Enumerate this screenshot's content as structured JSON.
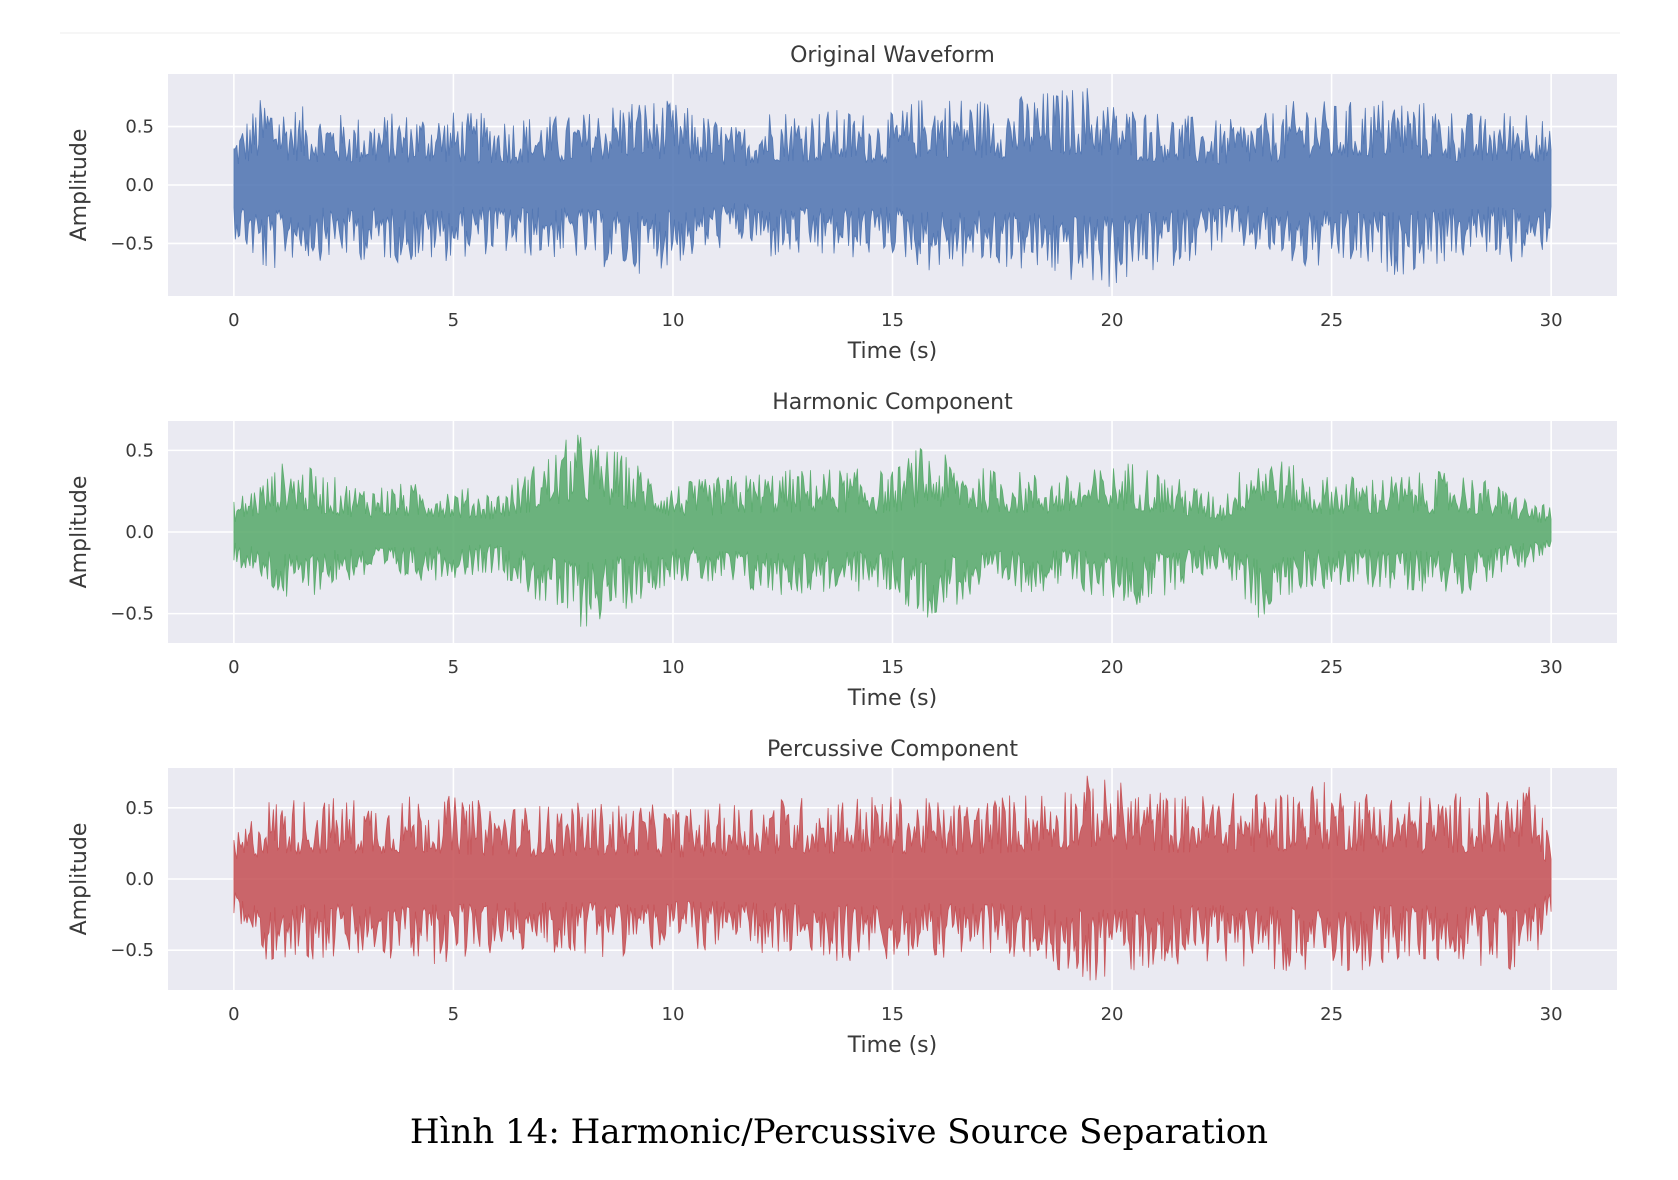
{
  "figure": {
    "caption": "Hình 14: Harmonic/Percussive Source Separation"
  },
  "chart_data": [
    {
      "type": "area",
      "title": "Original Waveform",
      "xlabel": "Time (s)",
      "ylabel": "Amplitude",
      "xlim": [
        -1.5,
        31.5
      ],
      "ylim": [
        -0.95,
        0.95
      ],
      "xticks": [
        0,
        5,
        10,
        15,
        20,
        25,
        30
      ],
      "yticks": [
        0.5,
        0.0,
        -0.5
      ],
      "xtick_labels": [
        "0",
        "5",
        "10",
        "15",
        "20",
        "25",
        "30"
      ],
      "ytick_labels": [
        "0.5",
        "0.0",
        "−0.5"
      ],
      "grid": true,
      "color": "#4c72b0",
      "series": [
        {
          "x": [
            0,
            0.75,
            1.2,
            2.7,
            4.5,
            5.6,
            7.8,
            9.0,
            10.0,
            11.5,
            12.2,
            14.0,
            15.0,
            15.8,
            17.5,
            19.5,
            20.0,
            22.5,
            23.5,
            24.5,
            25.0,
            26.5,
            28.5,
            29.6,
            30.0
          ],
          "values": [
            0.45,
            0.82,
            0.7,
            0.6,
            0.65,
            0.62,
            0.6,
            0.78,
            0.72,
            0.5,
            0.68,
            0.65,
            0.62,
            0.8,
            0.75,
            0.88,
            0.72,
            0.55,
            0.62,
            0.78,
            0.7,
            0.78,
            0.6,
            0.72,
            0.45
          ],
          "min_values": [
            -0.45,
            -0.82,
            -0.65,
            -0.65,
            -0.68,
            -0.6,
            -0.65,
            -0.78,
            -0.7,
            -0.5,
            -0.65,
            -0.65,
            -0.6,
            -0.75,
            -0.72,
            -0.88,
            -0.9,
            -0.55,
            -0.62,
            -0.78,
            -0.7,
            -0.78,
            -0.6,
            -0.72,
            -0.45
          ]
        }
      ]
    },
    {
      "type": "area",
      "title": "Harmonic Component",
      "xlabel": "Time (s)",
      "ylabel": "Amplitude",
      "xlim": [
        -1.5,
        31.5
      ],
      "ylim": [
        -0.68,
        0.68
      ],
      "xticks": [
        0,
        5,
        10,
        15,
        20,
        25,
        30
      ],
      "yticks": [
        0.5,
        0.0,
        -0.5
      ],
      "xtick_labels": [
        "0",
        "5",
        "10",
        "15",
        "20",
        "25",
        "30"
      ],
      "ytick_labels": [
        "0.5",
        "0.0",
        "−0.5"
      ],
      "grid": true,
      "color": "#55a868",
      "series": [
        {
          "x": [
            0,
            1.2,
            2.7,
            4.5,
            6.0,
            7.8,
            8.9,
            10.0,
            12.0,
            13.5,
            15.0,
            15.6,
            17.0,
            19.0,
            20.5,
            22.5,
            23.3,
            24.5,
            26.0,
            28.0,
            30.0
          ],
          "values": [
            0.2,
            0.45,
            0.3,
            0.3,
            0.25,
            0.62,
            0.48,
            0.3,
            0.38,
            0.4,
            0.38,
            0.53,
            0.4,
            0.35,
            0.45,
            0.22,
            0.55,
            0.35,
            0.35,
            0.38,
            0.15
          ],
          "min_values": [
            -0.2,
            -0.45,
            -0.3,
            -0.3,
            -0.25,
            -0.62,
            -0.48,
            -0.3,
            -0.4,
            -0.38,
            -0.38,
            -0.55,
            -0.4,
            -0.35,
            -0.48,
            -0.22,
            -0.55,
            -0.35,
            -0.35,
            -0.38,
            -0.15
          ]
        }
      ]
    },
    {
      "type": "area",
      "title": "Percussive Component",
      "xlabel": "Time (s)",
      "ylabel": "Amplitude",
      "xlim": [
        -1.5,
        31.5
      ],
      "ylim": [
        -0.78,
        0.78
      ],
      "xticks": [
        0,
        5,
        10,
        15,
        20,
        25,
        30
      ],
      "yticks": [
        0.5,
        0.0,
        -0.5
      ],
      "xtick_labels": [
        "0",
        "5",
        "10",
        "15",
        "20",
        "25",
        "30"
      ],
      "ytick_labels": [
        "0.5",
        "0.0",
        "−0.5"
      ],
      "grid": true,
      "color": "#c44e52",
      "series": [
        {
          "x": [
            0,
            0.75,
            2.6,
            4.6,
            6.5,
            8.5,
            10.5,
            12.0,
            14.5,
            16.5,
            18.5,
            19.5,
            21.5,
            23.5,
            24.6,
            26.6,
            28.6,
            29.5,
            30.0
          ],
          "values": [
            0.3,
            0.58,
            0.58,
            0.6,
            0.52,
            0.55,
            0.5,
            0.58,
            0.6,
            0.55,
            0.65,
            0.74,
            0.6,
            0.62,
            0.7,
            0.6,
            0.62,
            0.65,
            0.3
          ],
          "min_values": [
            -0.3,
            -0.58,
            -0.58,
            -0.6,
            -0.52,
            -0.55,
            -0.5,
            -0.55,
            -0.6,
            -0.55,
            -0.6,
            -0.74,
            -0.6,
            -0.62,
            -0.7,
            -0.6,
            -0.62,
            -0.65,
            -0.3
          ]
        }
      ]
    }
  ]
}
